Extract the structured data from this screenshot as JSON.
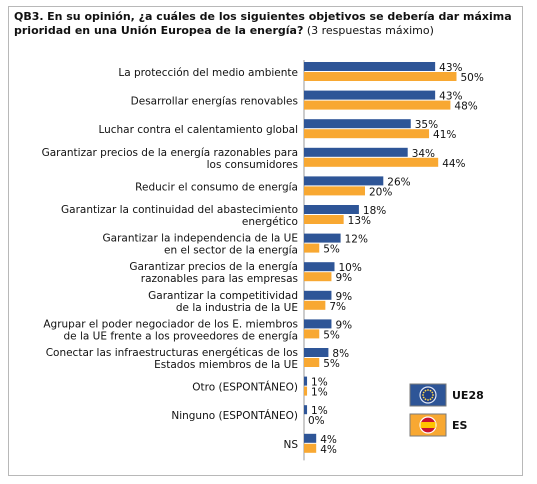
{
  "question": {
    "code": "QB3.",
    "text": "En su opinión, ¿a cuáles de los siguientes objetivos se debería dar máxima prioridad en una Unión Europea de la energía?",
    "note": "(3 respuestas máximo)"
  },
  "colors": {
    "ue28": "#2e5597",
    "es": "#f8a832",
    "axis": "#9a9a9a",
    "legend_border": "#7a7a7a"
  },
  "chart_data": {
    "type": "bar",
    "orientation": "horizontal",
    "categories": [
      [
        "La protección del medio ambiente"
      ],
      [
        "Desarrollar energías renovables"
      ],
      [
        "Luchar contra el calentamiento global"
      ],
      [
        "Garantizar precios de la energía razonables para",
        "los consumidores"
      ],
      [
        "Reducir el consumo de energía"
      ],
      [
        "Garantizar la continuidad del abastecimiento",
        "energético"
      ],
      [
        "Garantizar la independencia de la UE",
        "en el sector de la energía"
      ],
      [
        "Garantizar precios de la energía",
        "razonables para las empresas"
      ],
      [
        "Garantizar la competitividad",
        "de la industria de la UE"
      ],
      [
        "Agrupar el poder negociador de los E. miembros",
        "de la UE frente a los proveedores de energía"
      ],
      [
        "Conectar las infraestructuras energéticas de los",
        "Estados miembros de la UE"
      ],
      [
        "Otro (ESPONTÁNEO)"
      ],
      [
        "Ninguno (ESPONTÁNEO)"
      ],
      [
        "NS"
      ]
    ],
    "series": [
      {
        "name": "UE28",
        "values": [
          43,
          43,
          35,
          34,
          26,
          18,
          12,
          10,
          9,
          9,
          8,
          1,
          1,
          4
        ]
      },
      {
        "name": "ES",
        "values": [
          50,
          48,
          41,
          44,
          20,
          13,
          5,
          9,
          7,
          5,
          5,
          1,
          0,
          4
        ]
      }
    ],
    "value_suffix": "%",
    "xlim": [
      0,
      60
    ],
    "legend_position": "bottom-right",
    "grid": false
  }
}
